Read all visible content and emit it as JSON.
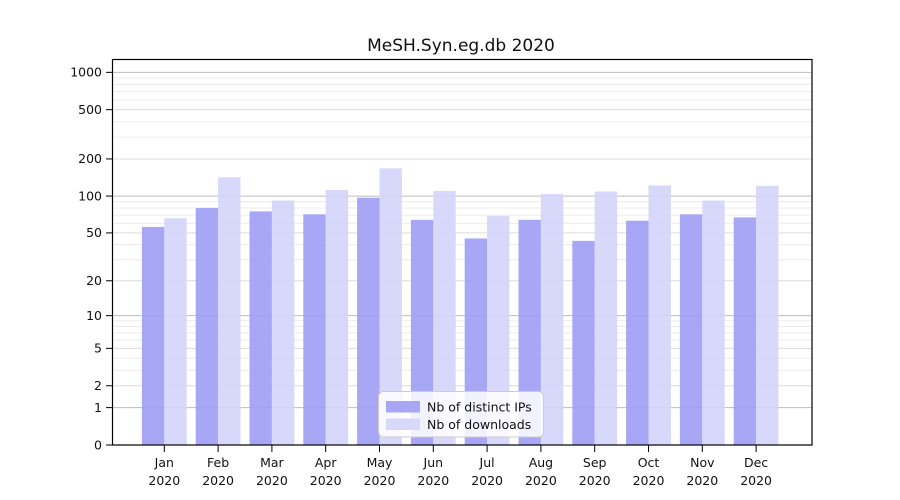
{
  "chart_data": {
    "type": "bar",
    "title": "MeSH.Syn.eg.db 2020",
    "categories": [
      "Jan",
      "Feb",
      "Mar",
      "Apr",
      "May",
      "Jun",
      "Jul",
      "Aug",
      "Sep",
      "Oct",
      "Nov",
      "Dec"
    ],
    "year_label": "2020",
    "series": [
      {
        "name": "Nb of distinct IPs",
        "color": "#a7a7f5",
        "bar_fill": "rgba(157,157,244,0.9)",
        "values": [
          56,
          80,
          75,
          71,
          97,
          64,
          45,
          64,
          43,
          63,
          71,
          67
        ]
      },
      {
        "name": "Nb of downloads",
        "color": "#d8d8fa",
        "bar_fill": "rgba(212,212,249,0.9)",
        "values": [
          66,
          142,
          92,
          112,
          168,
          110,
          69,
          104,
          109,
          122,
          92,
          121
        ]
      }
    ],
    "yscale": "log10(value+1)",
    "yticks": [
      0,
      1,
      2,
      5,
      10,
      20,
      50,
      100,
      200,
      500,
      1000
    ],
    "ylim": [
      0,
      1270
    ],
    "grid": true,
    "gridlines_major": [
      1,
      10,
      100,
      1000
    ],
    "gridlines_mid": [
      2,
      5,
      20,
      50,
      200,
      500
    ],
    "gridlines_minor": [
      3,
      4,
      6,
      7,
      8,
      9,
      30,
      40,
      60,
      70,
      80,
      90,
      300,
      400,
      600,
      700,
      800,
      900
    ],
    "grid_colors": {
      "major": "#bdbdbd",
      "mid": "#dcdcdc",
      "minor": "#ececec"
    },
    "axis_color": "#000000",
    "legend_position": "bottom-center",
    "legend": [
      {
        "label": "Nb of distinct IPs",
        "color": "#a7a7f5"
      },
      {
        "label": "Nb of downloads",
        "color": "#d8d8fa"
      }
    ]
  }
}
